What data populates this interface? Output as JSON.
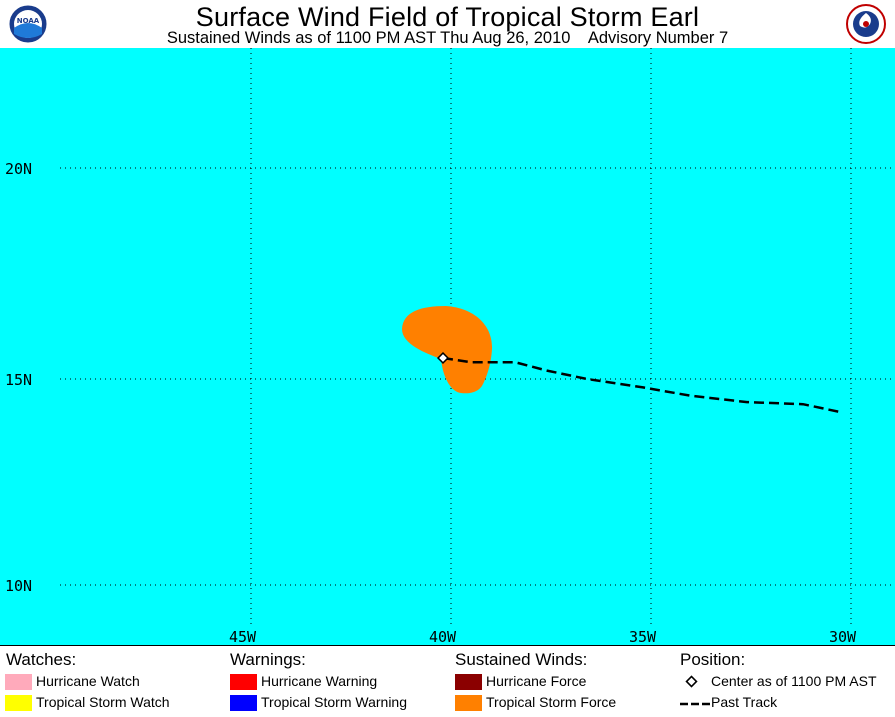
{
  "header": {
    "title": "Surface Wind Field of Tropical Storm Earl",
    "subtitle": "Sustained Winds as of 1100 PM AST Thu Aug 26, 2010    Advisory Number 7",
    "left_logo": "noaa-logo",
    "right_logo": "national-weather-service-logo"
  },
  "map": {
    "ocean_color": "#00ffff",
    "lat_labels": [
      "20N",
      "15N",
      "10N"
    ],
    "lon_labels": [
      "45W",
      "40W",
      "35W",
      "30W"
    ],
    "wind_field": {
      "type": "tropical-storm-force",
      "color": "#ff8000"
    },
    "storm_center": {
      "lat": 15.5,
      "lon": 40.2
    },
    "past_track": [
      [
        40.2,
        15.5
      ],
      [
        39.5,
        15.4
      ],
      [
        38.4,
        15.4
      ],
      [
        37.6,
        15.2
      ],
      [
        36.6,
        15.0
      ],
      [
        35.2,
        14.8
      ],
      [
        34.0,
        14.6
      ],
      [
        32.6,
        14.45
      ],
      [
        31.2,
        14.4
      ],
      [
        30.2,
        14.2
      ]
    ]
  },
  "legend": {
    "watches": {
      "heading": "Watches:",
      "items": [
        {
          "label": "Hurricane Watch",
          "color": "#ffaabb"
        },
        {
          "label": "Tropical Storm Watch",
          "color": "#ffff00"
        }
      ]
    },
    "warnings": {
      "heading": "Warnings:",
      "items": [
        {
          "label": "Hurricane Warning",
          "color": "#ff0000"
        },
        {
          "label": "Tropical Storm Warning",
          "color": "#0000ff"
        }
      ]
    },
    "winds": {
      "heading": "Sustained Winds:",
      "items": [
        {
          "label": "Hurricane Force",
          "color": "#8b0000"
        },
        {
          "label": "Tropical Storm Force",
          "color": "#ff8000"
        }
      ]
    },
    "position": {
      "heading": "Position:",
      "center_label": "Center as of 1100 PM AST",
      "track_label": "Past Track"
    }
  }
}
